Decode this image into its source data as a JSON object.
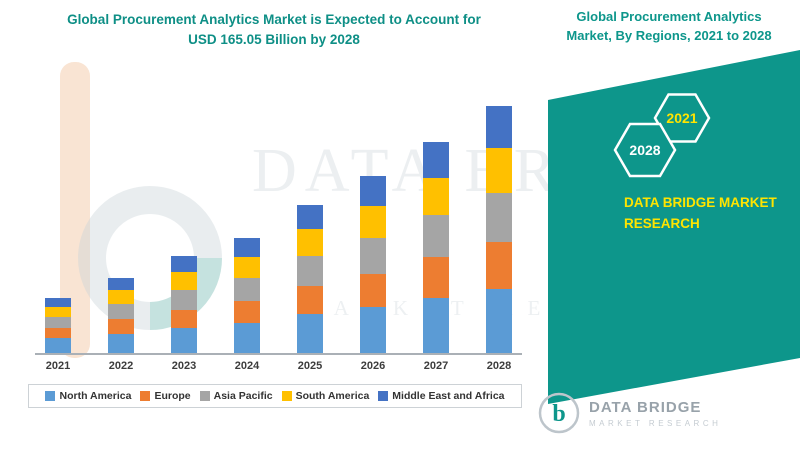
{
  "left_panel": {
    "title_line1": "Global Procurement Analytics Market is Expected to Account for",
    "title_line2": "USD 165.05 Billion by 2028"
  },
  "right_panel": {
    "heading_line1": "Global Procurement Analytics",
    "heading_line2": "Market, By Regions, 2021 to 2028",
    "hexagon_labels": [
      "2028",
      "2021"
    ],
    "brand_line1": "DATA BRIDGE MARKET",
    "brand_line2": "RESEARCH",
    "teal": "#0d968b",
    "yellow": "#ffe400"
  },
  "watermark": {
    "line1": "DATA BRIDGE",
    "line2": "MARKET RESEARCH"
  },
  "logo": {
    "name": "DATA BRIDGE",
    "tagline": "MARKET RESEARCH"
  },
  "chart_data": {
    "type": "bar",
    "stacked": true,
    "title": "Global Procurement Analytics Market is Expected to Account for USD 165.05 Billion by 2028",
    "unit": "USD Billion",
    "categories": [
      "2021",
      "2022",
      "2023",
      "2024",
      "2025",
      "2026",
      "2027",
      "2028"
    ],
    "series": [
      {
        "name": "North America",
        "color": "#5B9BD5",
        "values": [
          10,
          13,
          17,
          20,
          26,
          31,
          37,
          43
        ]
      },
      {
        "name": "Europe",
        "color": "#ED7D31",
        "values": [
          7,
          10,
          12,
          15,
          19,
          22,
          27,
          31
        ]
      },
      {
        "name": "Asia Pacific",
        "color": "#A5A5A5",
        "values": [
          7,
          10,
          13,
          15,
          20,
          24,
          28,
          33
        ]
      },
      {
        "name": "South America",
        "color": "#FFC000",
        "values": [
          7,
          9,
          12,
          14,
          18,
          21,
          25,
          30
        ]
      },
      {
        "name": "Middle East and Africa",
        "color": "#4472C4",
        "values": [
          6,
          8,
          11,
          13,
          16,
          20,
          24,
          28
        ]
      }
    ],
    "totals": [
      37,
      50,
      65,
      77,
      99,
      118,
      141,
      165
    ],
    "ylim": [
      0,
      180
    ],
    "grid": false,
    "legend_position": "bottom",
    "ylabel": "",
    "xlabel": ""
  }
}
